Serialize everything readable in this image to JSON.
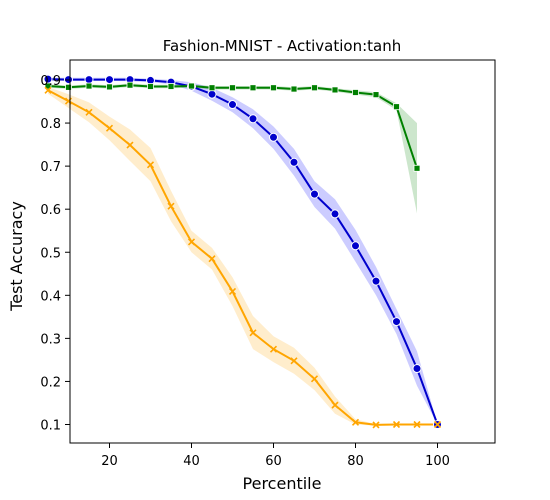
{
  "chart_data": {
    "type": "line",
    "title": "Fashion-MNIST - Activation:tanh",
    "xlabel": "Percentile",
    "ylabel": "Test Accuracy",
    "xlim": [
      0,
      100
    ],
    "ylim": [
      0.05,
      0.95
    ],
    "x_ticks": [
      20,
      40,
      60,
      80,
      100
    ],
    "y_ticks": [
      0.1,
      0.2,
      0.3,
      0.4,
      0.5,
      0.6,
      0.7,
      0.8,
      0.9
    ],
    "x_tick_labels": [
      "20",
      "40",
      "60",
      "80",
      "100"
    ],
    "y_tick_labels": [
      "0.1",
      "0.2",
      "0.3",
      "0.4",
      "0.5",
      "0.6",
      "0.7",
      "0.8",
      "0.9"
    ],
    "grid": false,
    "legend": "none",
    "series": [
      {
        "color": "#0000cc",
        "band_color": "#0000ff",
        "marker": "circle",
        "x": [
          5,
          10,
          15,
          20,
          25,
          30,
          35,
          40,
          45,
          50,
          55,
          60,
          65,
          70,
          75,
          80,
          85,
          90,
          95,
          100
        ],
        "y": [
          0.902,
          0.901,
          0.901,
          0.901,
          0.901,
          0.899,
          0.895,
          0.885,
          0.867,
          0.843,
          0.81,
          0.767,
          0.709,
          0.635,
          0.589,
          0.515,
          0.433,
          0.339,
          0.23,
          0.1
        ],
        "lower": [
          0.898,
          0.898,
          0.898,
          0.898,
          0.897,
          0.895,
          0.89,
          0.875,
          0.852,
          0.825,
          0.788,
          0.74,
          0.678,
          0.605,
          0.555,
          0.478,
          0.4,
          0.31,
          0.19,
          0.1
        ],
        "upper": [
          0.905,
          0.905,
          0.905,
          0.905,
          0.905,
          0.903,
          0.9,
          0.895,
          0.882,
          0.86,
          0.832,
          0.792,
          0.74,
          0.665,
          0.623,
          0.552,
          0.466,
          0.368,
          0.27,
          0.1
        ]
      },
      {
        "color": "#008000",
        "band_color": "#008000",
        "marker": "square",
        "x": [
          5,
          10,
          15,
          20,
          25,
          30,
          35,
          40,
          45,
          50,
          55,
          60,
          65,
          70,
          75,
          80,
          85,
          90,
          95
        ],
        "y": [
          0.886,
          0.883,
          0.886,
          0.884,
          0.888,
          0.885,
          0.885,
          0.886,
          0.882,
          0.882,
          0.882,
          0.882,
          0.879,
          0.882,
          0.877,
          0.871,
          0.866,
          0.838,
          0.695
        ],
        "lower": [
          0.882,
          0.879,
          0.882,
          0.88,
          0.884,
          0.881,
          0.881,
          0.882,
          0.878,
          0.878,
          0.878,
          0.878,
          0.875,
          0.878,
          0.873,
          0.866,
          0.86,
          0.83,
          0.59
        ],
        "upper": [
          0.89,
          0.887,
          0.89,
          0.888,
          0.892,
          0.889,
          0.889,
          0.89,
          0.886,
          0.886,
          0.886,
          0.886,
          0.883,
          0.886,
          0.881,
          0.876,
          0.872,
          0.846,
          0.8
        ]
      },
      {
        "color": "#ffa500",
        "band_color": "#ffa500",
        "marker": "x",
        "x": [
          5,
          10,
          15,
          20,
          25,
          30,
          35,
          40,
          45,
          50,
          55,
          60,
          65,
          70,
          75,
          80,
          85,
          90,
          95,
          100
        ],
        "y": [
          0.876,
          0.851,
          0.825,
          0.788,
          0.749,
          0.703,
          0.607,
          0.524,
          0.485,
          0.409,
          0.313,
          0.275,
          0.248,
          0.206,
          0.145,
          0.105,
          0.099,
          0.1,
          0.1,
          0.1
        ],
        "lower": [
          0.868,
          0.835,
          0.802,
          0.76,
          0.712,
          0.665,
          0.572,
          0.5,
          0.46,
          0.375,
          0.275,
          0.245,
          0.218,
          0.18,
          0.125,
          0.1,
          0.097,
          0.098,
          0.098,
          0.098
        ],
        "upper": [
          0.884,
          0.867,
          0.848,
          0.815,
          0.785,
          0.742,
          0.643,
          0.55,
          0.51,
          0.442,
          0.352,
          0.305,
          0.278,
          0.232,
          0.165,
          0.112,
          0.101,
          0.102,
          0.102,
          0.102
        ]
      }
    ]
  }
}
